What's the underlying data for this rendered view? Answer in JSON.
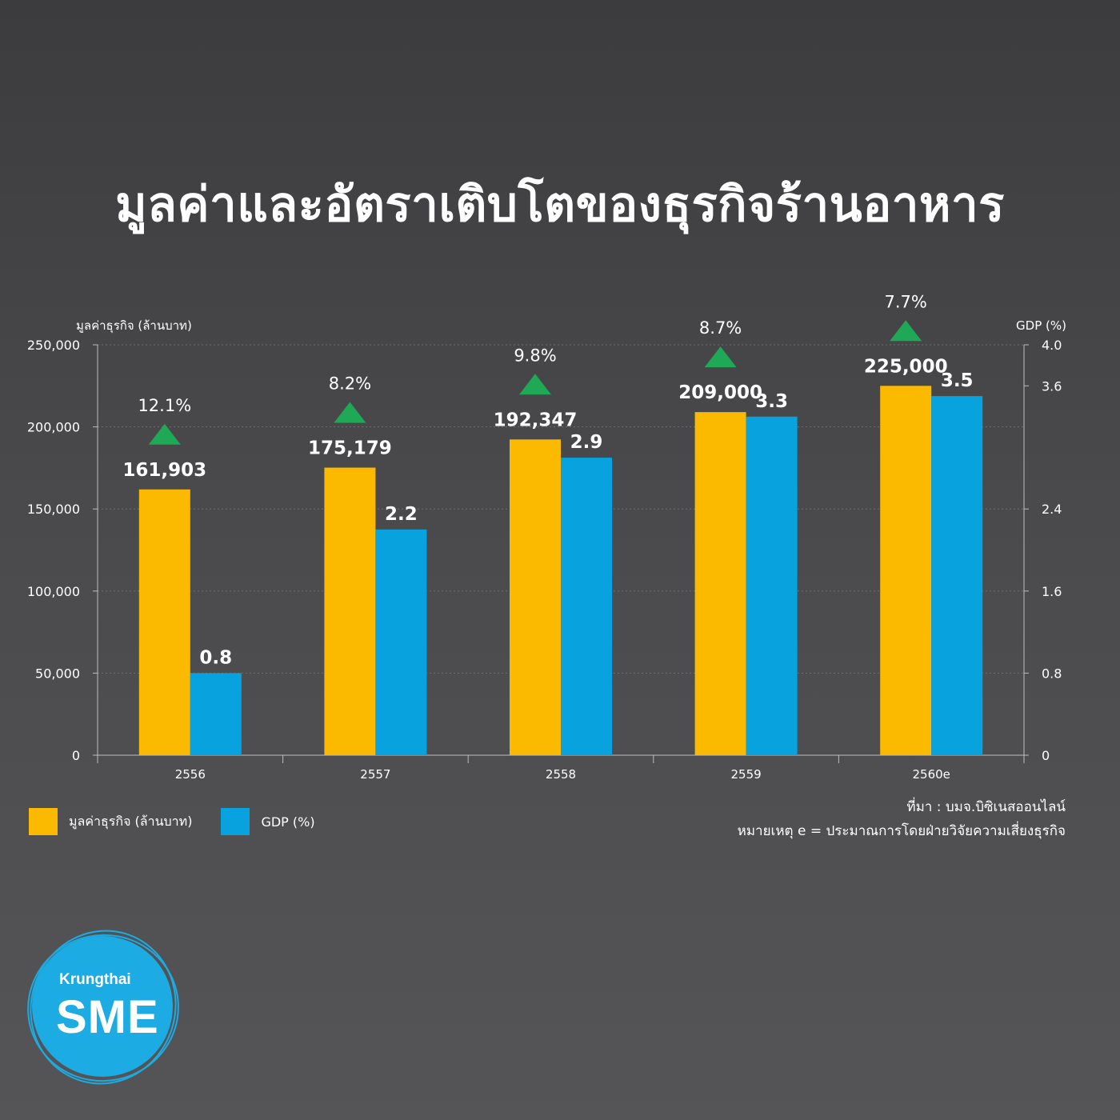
{
  "title": "มูลค่าและอัตราเติบโตของธุรกิจร้านอาหาร",
  "chart_data": {
    "type": "bar",
    "categories": [
      "2556",
      "2557",
      "2558",
      "2559",
      "2560e"
    ],
    "series": [
      {
        "name": "มูลค่าธุรกิจ (ล้านบาท)",
        "axis": "left",
        "color": "#fbb900",
        "values": [
          161903,
          175179,
          192347,
          209000,
          225000
        ],
        "labels": [
          "161,903",
          "175,179",
          "192,347",
          "209,000",
          "225,000"
        ]
      },
      {
        "name": "GDP (%)",
        "axis": "right",
        "color": "#08a3df",
        "values": [
          0.8,
          2.2,
          2.9,
          3.3,
          3.5
        ],
        "labels": [
          "0.8",
          "2.2",
          "2.9",
          "3.3",
          "3.5"
        ]
      }
    ],
    "growth_labels": [
      "12.1%",
      "8.2%",
      "9.8%",
      "8.7%",
      "7.7%"
    ],
    "growth_marker_color": "#1fa855",
    "y_left": {
      "label": "มูลค่าธุรกิจ (ล้านบาท)",
      "ylim": [
        0,
        250000
      ],
      "ticks": [
        "0",
        "50,000",
        "100,000",
        "150,000",
        "200,000",
        "250,000"
      ]
    },
    "y_right": {
      "label": "GDP (%)",
      "ylim": [
        0,
        4.0
      ],
      "ticks": [
        "0",
        "0.8",
        "1.6",
        "2.4",
        "3.6",
        "4.0"
      ]
    },
    "grid": "horizontal-dotted",
    "legend_position": "bottom-left"
  },
  "legend": [
    {
      "label": "มูลค่าธุรกิจ (ล้านบาท)",
      "color": "#fbb900"
    },
    {
      "label": "GDP (%)",
      "color": "#08a3df"
    }
  ],
  "notes": {
    "source": "ที่มา : บมจ.บิซิเนสออนไลน์",
    "remark": "หมายเหตุ e = ประมาณการโดยฝ่ายวิจัยความเสี่ยงธุรกิจ"
  },
  "logo": {
    "top_text": "Krungthai",
    "main_text": "SME",
    "color": "#1cabe2"
  }
}
